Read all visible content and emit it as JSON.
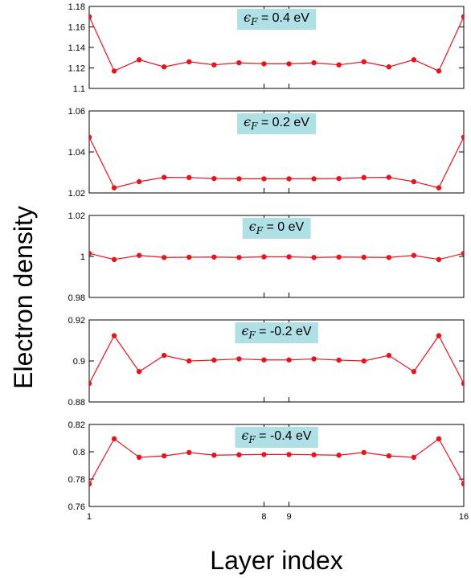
{
  "chart_data": {
    "type": "line",
    "ylabel": "Electron density",
    "xlabel": "Layer index",
    "x": [
      1,
      2,
      3,
      4,
      5,
      6,
      7,
      8,
      9,
      10,
      11,
      12,
      13,
      14,
      15,
      16
    ],
    "xticks": [
      1,
      8,
      9,
      16
    ],
    "xlim": [
      1,
      16
    ],
    "color": "#e8141c",
    "grid": false,
    "panels": [
      {
        "label_symbol": "ϵ",
        "label_sub": "F",
        "label_value": " = 0.4 eV",
        "ylim": [
          1.1,
          1.18
        ],
        "yticks": [
          "1.1",
          "1.12",
          "1.14",
          "1.16",
          "1.18"
        ],
        "values": [
          1.17,
          1.117,
          1.128,
          1.121,
          1.126,
          1.123,
          1.125,
          1.124,
          1.124,
          1.125,
          1.123,
          1.126,
          1.121,
          1.128,
          1.117,
          1.17
        ]
      },
      {
        "label_symbol": "ϵ",
        "label_sub": "F",
        "label_value": " = 0.2 eV",
        "ylim": [
          1.02,
          1.06
        ],
        "yticks": [
          "1.02",
          "1.04",
          "1.06"
        ],
        "values": [
          1.0472,
          1.0225,
          1.0255,
          1.0276,
          1.0275,
          1.027,
          1.0269,
          1.0269,
          1.0269,
          1.0269,
          1.027,
          1.0275,
          1.0276,
          1.0255,
          1.0225,
          1.0472
        ]
      },
      {
        "label_symbol": "ϵ",
        "label_sub": "F",
        "label_value": " = 0 eV",
        "ylim": [
          0.98,
          1.02
        ],
        "yticks": [
          "0.98",
          "1",
          "1.02"
        ],
        "values": [
          1.0015,
          0.9985,
          1.0005,
          0.9995,
          0.9996,
          0.9997,
          0.9995,
          0.9998,
          0.9998,
          0.9995,
          0.9997,
          0.9996,
          0.9995,
          1.0005,
          0.9985,
          1.0015
        ]
      },
      {
        "label_symbol": "ϵ",
        "label_sub": "F",
        "label_value": " = -0.2 eV",
        "ylim": [
          0.88,
          0.92
        ],
        "yticks": [
          "0.88",
          "0.9",
          "0.92"
        ],
        "values": [
          0.889,
          0.9123,
          0.8948,
          0.9027,
          0.9,
          0.9004,
          0.901,
          0.9005,
          0.9005,
          0.901,
          0.9004,
          0.9,
          0.9027,
          0.8948,
          0.9123,
          0.889
        ]
      },
      {
        "label_symbol": "ϵ",
        "label_sub": "F",
        "label_value": " = -0.4 eV",
        "ylim": [
          0.76,
          0.82
        ],
        "yticks": [
          "0.76",
          "0.78",
          "0.8",
          "0.82"
        ],
        "values": [
          0.7765,
          0.8095,
          0.796,
          0.797,
          0.7995,
          0.7975,
          0.7978,
          0.798,
          0.798,
          0.7978,
          0.7975,
          0.7995,
          0.797,
          0.796,
          0.8095,
          0.7765
        ]
      }
    ]
  }
}
